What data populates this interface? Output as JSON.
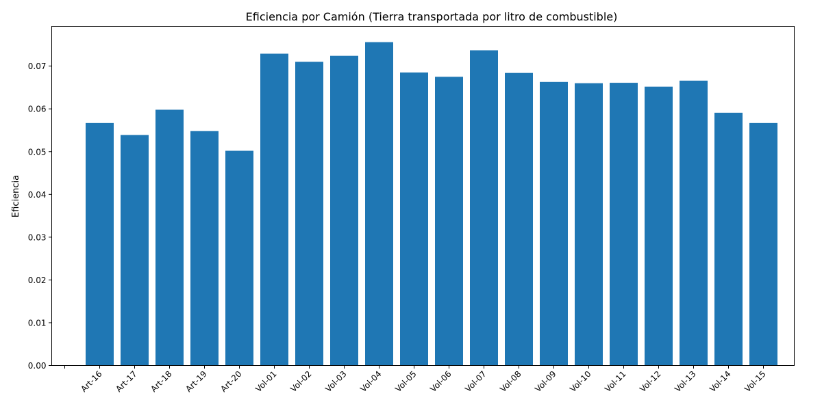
{
  "chart_data": {
    "type": "bar",
    "title": "Eficiencia por Camión (Tierra transportada por litro de combustible)",
    "xlabel": "",
    "ylabel": "Eficiencia",
    "categories": [
      "Art-16",
      "Art-17",
      "Art-18",
      "Art-19",
      "Art-20",
      "Vol-01",
      "Vol-02",
      "Vol-03",
      "Vol-04",
      "Vol-05",
      "Vol-06",
      "Vol-07",
      "Vol-08",
      "Vol-09",
      "Vol-10",
      "Vol-11",
      "Vol-12",
      "Vol-13",
      "Vol-14",
      "Vol-15"
    ],
    "values": [
      0.0567,
      0.0539,
      0.0598,
      0.0548,
      0.0502,
      0.0729,
      0.071,
      0.0724,
      0.0756,
      0.0685,
      0.0675,
      0.0737,
      0.0684,
      0.0663,
      0.066,
      0.0661,
      0.0652,
      0.0666,
      0.0591,
      0.0567
    ],
    "ylim": [
      0,
      0.0793
    ],
    "yticks": [
      "0.00",
      "0.01",
      "0.02",
      "0.03",
      "0.04",
      "0.05",
      "0.06",
      "0.07"
    ],
    "bar_color": "#1f77b4",
    "grid": false,
    "legend": "none"
  }
}
